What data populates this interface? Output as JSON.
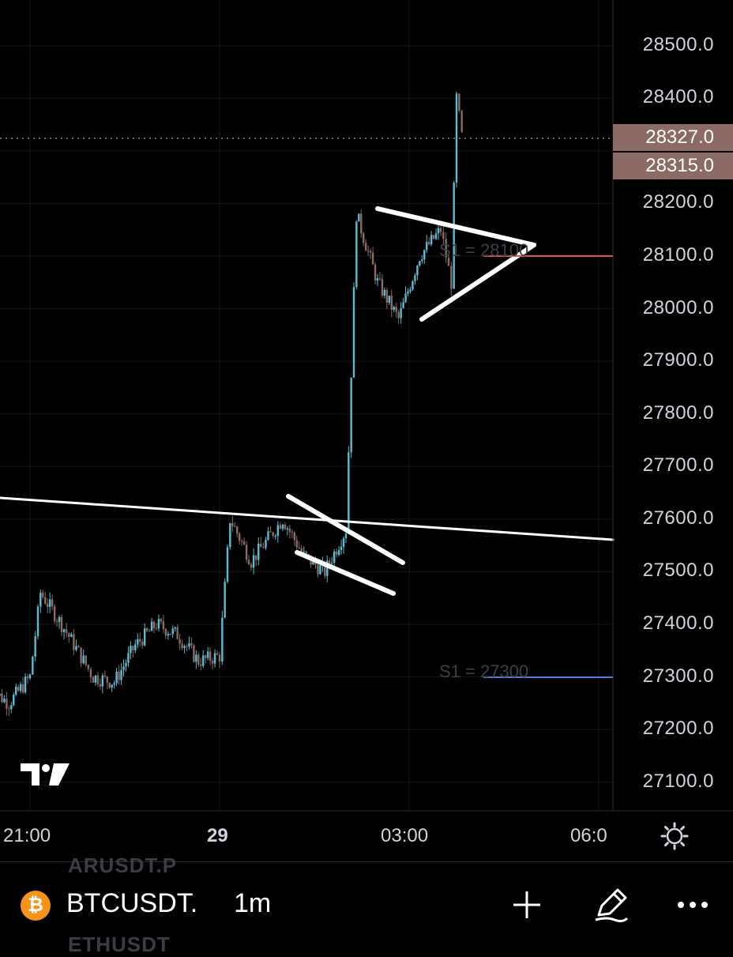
{
  "price_axis": {
    "labels": [
      "28500.0",
      "28400.0",
      "28200.0",
      "28100.0",
      "28000.0",
      "27900.0",
      "27800.0",
      "27700.0",
      "27600.0",
      "27500.0",
      "27400.0",
      "27300.0",
      "27200.0",
      "27100.0"
    ],
    "last_price": "28327.0",
    "second_price": "28315.0"
  },
  "time_axis": {
    "labels": [
      "21:00",
      "29",
      "03:00",
      "06:0"
    ]
  },
  "indicators": {
    "r_line_label": "S1 = 28100",
    "s_line_label": "S1 = 27300",
    "r_line_color": "#e05252",
    "s_line_color": "#4a7fd4"
  },
  "colors": {
    "up": "#5bbcd3",
    "down": "#8a6b66",
    "drawing": "#ffffff"
  },
  "logo": "TV",
  "bottom_bar": {
    "ghost_top": "ARUSDT.P",
    "ghost_bottom": "ETHUSDT",
    "coin_glyph": "₿",
    "symbol": "BTCUSDT.",
    "interval": "1m",
    "add_icon": "plus-icon",
    "draw_icon": "pencil-icon",
    "more_icon": "more-icon"
  },
  "chart_data": {
    "type": "candlestick",
    "symbol": "BTCUSDT",
    "interval": "1m",
    "ylim": [
      27020,
      28580
    ],
    "series_outline": [
      {
        "t": "20:20",
        "p": 27280
      },
      {
        "t": "20:40",
        "p": 27250
      },
      {
        "t": "21:00",
        "p": 27300
      },
      {
        "t": "21:10",
        "p": 27460
      },
      {
        "t": "21:30",
        "p": 27400
      },
      {
        "t": "22:00",
        "p": 27300
      },
      {
        "t": "22:20",
        "p": 27290
      },
      {
        "t": "22:40",
        "p": 27360
      },
      {
        "t": "23:00",
        "p": 27400
      },
      {
        "t": "23:20",
        "p": 27380
      },
      {
        "t": "23:40",
        "p": 27330
      },
      {
        "t": "00:00",
        "p": 27340
      },
      {
        "t": "00:10",
        "p": 27600
      },
      {
        "t": "00:30",
        "p": 27520
      },
      {
        "t": "01:00",
        "p": 27600
      },
      {
        "t": "01:20",
        "p": 27530
      },
      {
        "t": "01:40",
        "p": 27500
      },
      {
        "t": "02:00",
        "p": 27580
      },
      {
        "t": "02:10",
        "p": 28180
      },
      {
        "t": "02:30",
        "p": 28050
      },
      {
        "t": "02:50",
        "p": 27980
      },
      {
        "t": "03:10",
        "p": 28100
      },
      {
        "t": "03:30",
        "p": 28150
      },
      {
        "t": "03:40",
        "p": 28050
      },
      {
        "t": "03:45",
        "p": 28400
      },
      {
        "t": "03:50",
        "p": 28327
      }
    ],
    "last": 28327.0
  }
}
